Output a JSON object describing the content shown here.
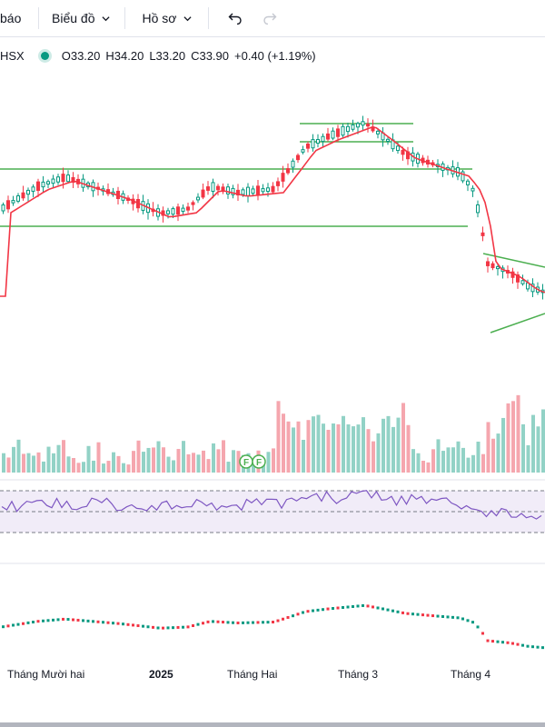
{
  "toolbar": {
    "alert_label": "báo",
    "chart_menu_label": "Biểu đồ",
    "profile_menu_label": "Hồ sơ",
    "undo_icon": "undo-icon",
    "redo_icon": "redo-icon"
  },
  "legend": {
    "exchange": "HSX",
    "status_color": "#089981",
    "open": "O33.20",
    "high": "H34.20",
    "low": "L33.20",
    "close": "C33.90",
    "change": "+0.40 (+1.19%)"
  },
  "colors": {
    "up": "#089981",
    "down": "#f23645",
    "up_volume": "#92d2c6",
    "down_volume": "#f5a6ae",
    "ma_line": "#f23645",
    "rsi_line": "#7e57c2",
    "trendline": "#4caf50"
  },
  "event_markers": [
    {
      "label": "F",
      "icon": "financials-event-icon"
    },
    {
      "label": "F",
      "icon": "financials-event-icon"
    }
  ],
  "time_axis": {
    "labels": [
      {
        "text": "Tháng Mười hai",
        "bold": false
      },
      {
        "text": "2025",
        "bold": true
      },
      {
        "text": "Tháng Hai",
        "bold": false
      },
      {
        "text": "Tháng 3",
        "bold": false
      },
      {
        "text": "Tháng 4",
        "bold": false
      }
    ]
  }
}
